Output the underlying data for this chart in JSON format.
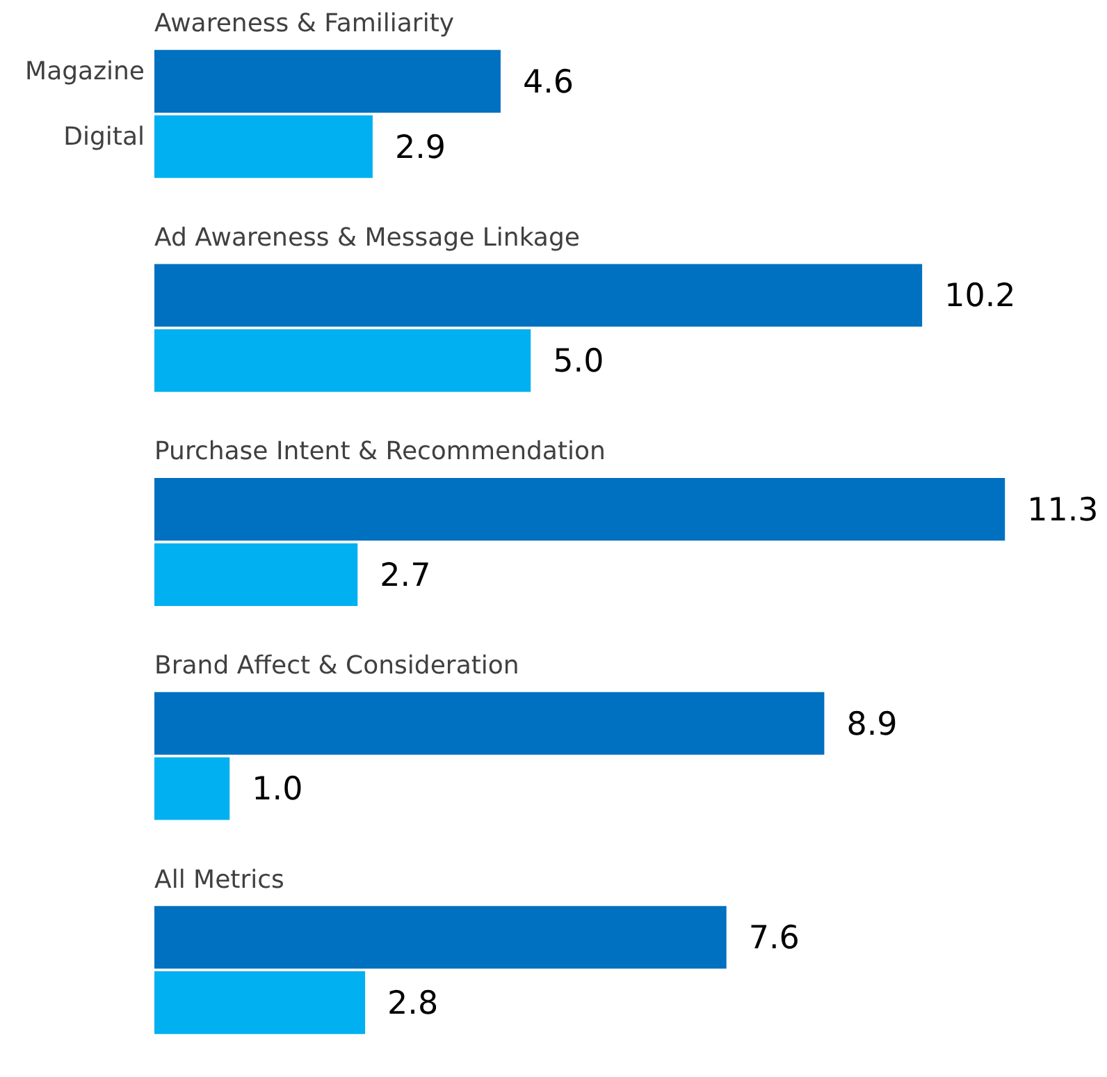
{
  "chart_data": {
    "type": "bar",
    "orientation": "horizontal",
    "categories": [
      "Awareness & Familiarity",
      "Ad Awareness & Message Linkage",
      "Purchase Intent & Recommendation",
      "Brand Affect & Consideration",
      "All Metrics"
    ],
    "series": [
      {
        "name": "Magazine",
        "color": "#0070c0",
        "values": [
          4.6,
          10.2,
          11.3,
          8.9,
          7.6
        ],
        "value_labels": [
          "4.6",
          "10.2",
          "11.3",
          "8.9",
          "7.6"
        ]
      },
      {
        "name": "Digital",
        "color": "#00b0f0",
        "values": [
          2.9,
          5.0,
          2.7,
          1.0,
          2.8
        ],
        "value_labels": [
          "2.9",
          "5.0",
          "2.7",
          "1.0",
          "2.8"
        ]
      }
    ],
    "legend": false
  }
}
